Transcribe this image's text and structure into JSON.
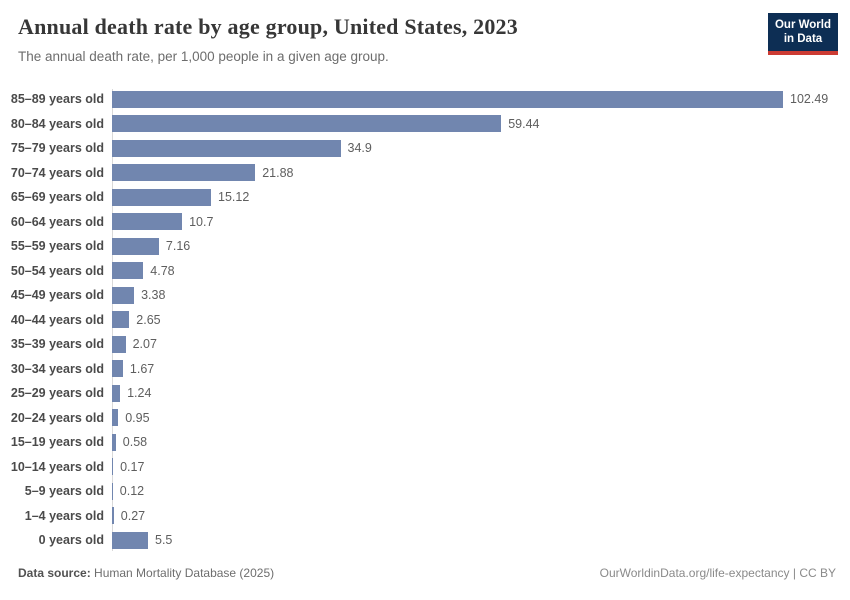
{
  "header": {
    "title": "Annual death rate by age group, United States, 2023",
    "subtitle": "The annual death rate, per 1,000 people in a given age group.",
    "logo": {
      "line1": "Our World",
      "line2": "in Data",
      "bg_color": "#0d2e54",
      "accent_color": "#cc3b33"
    }
  },
  "chart_data": {
    "type": "bar",
    "orientation": "horizontal",
    "title": "Annual death rate by age group, United States, 2023",
    "subtitle": "The annual death rate, per 1,000 people in a given age group.",
    "categories": [
      "85–89 years old",
      "80–84 years old",
      "75–79 years old",
      "70–74 years old",
      "65–69 years old",
      "60–64 years old",
      "55–59 years old",
      "50–54 years old",
      "45–49 years old",
      "40–44 years old",
      "35–39 years old",
      "30–34 years old",
      "25–29 years old",
      "20–24 years old",
      "15–19 years old",
      "10–14 years old",
      "5–9 years old",
      "1–4 years old",
      "0 years old"
    ],
    "values": [
      102.49,
      59.44,
      34.9,
      21.88,
      15.12,
      10.7,
      7.16,
      4.78,
      3.38,
      2.65,
      2.07,
      1.67,
      1.24,
      0.95,
      0.58,
      0.17,
      0.12,
      0.27,
      5.5
    ],
    "bar_color": "#7186af",
    "axis_line_color": "#d9d9d9",
    "xlim": [
      0,
      102.49
    ],
    "grid": false,
    "value_labels": true,
    "legend": "none"
  },
  "footer": {
    "source_label": "Data source:",
    "source_value": " Human Mortality Database (2025)",
    "url_text": "OurWorldinData.org/life-expectancy",
    "separator": " | ",
    "license": "CC BY"
  }
}
